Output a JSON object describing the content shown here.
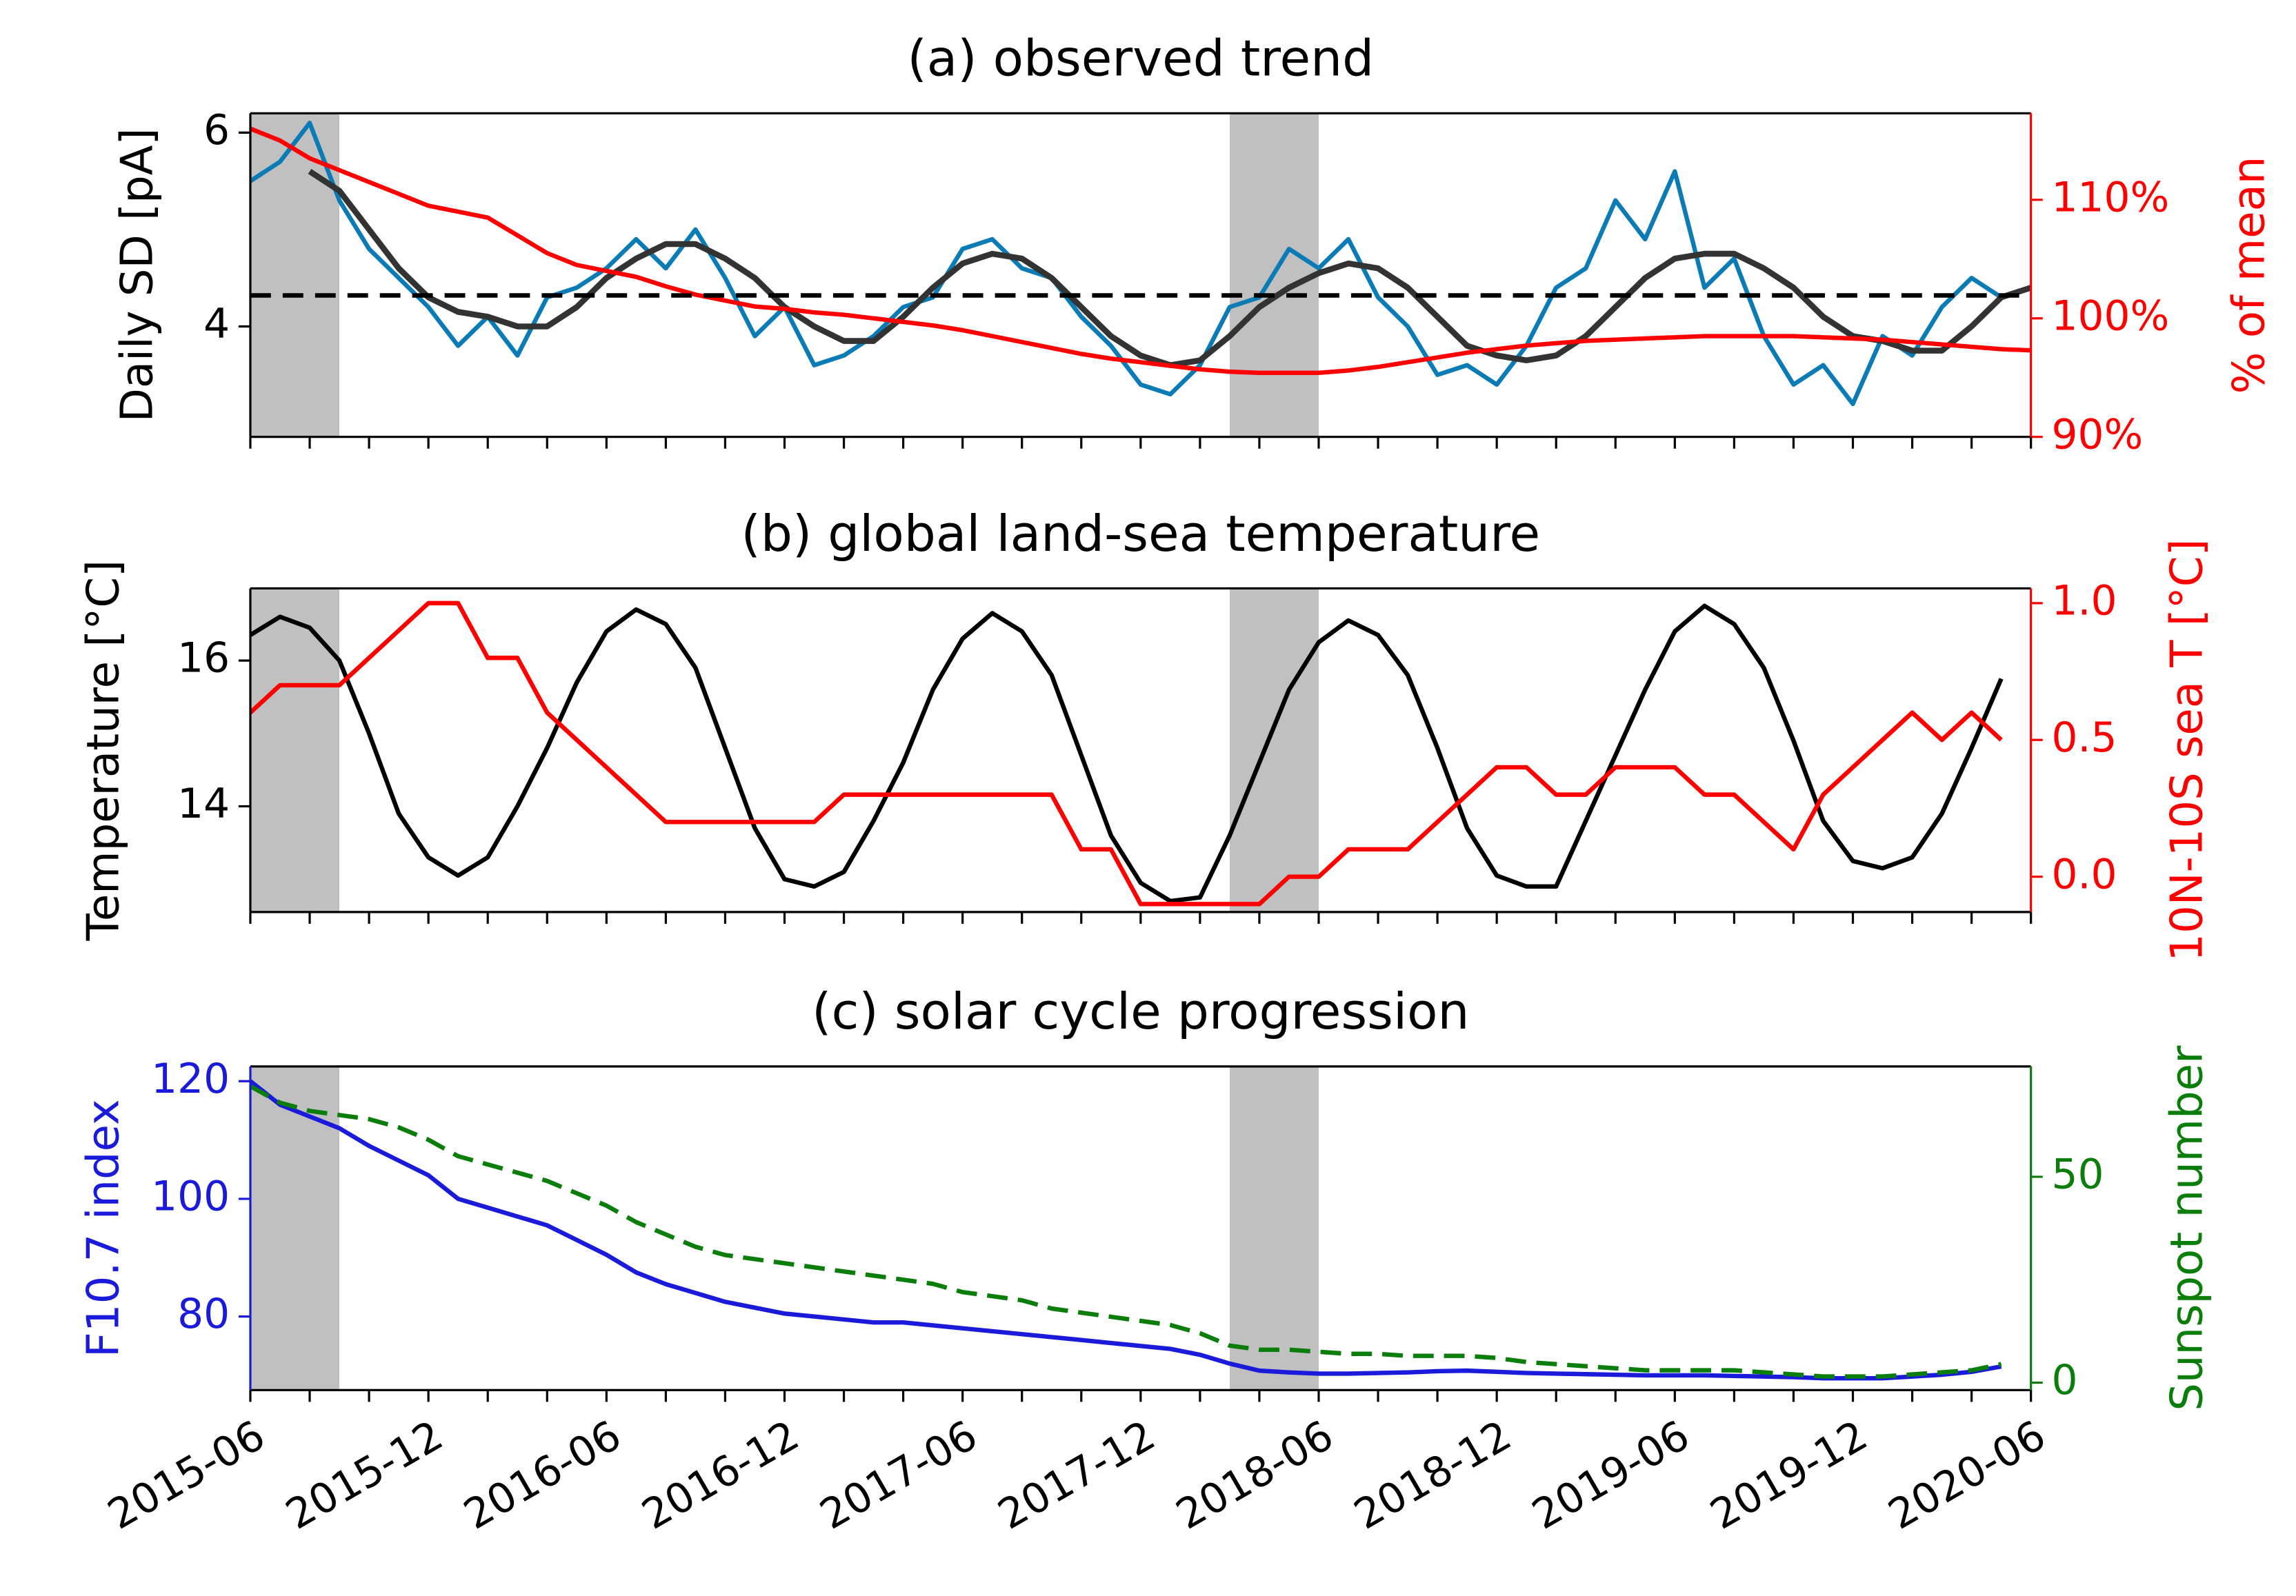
{
  "chart_data": [
    {
      "type": "line",
      "title": "(a) observed trend",
      "ylabel": "Daily SD [pA]",
      "y2label": "% of mean",
      "ylabel_color": "#000000",
      "y2label_color": "#ff0000",
      "x": [
        "2015-06",
        "2015-07",
        "2015-08",
        "2015-09",
        "2015-10",
        "2015-11",
        "2015-12",
        "2016-01",
        "2016-02",
        "2016-03",
        "2016-04",
        "2016-05",
        "2016-06",
        "2016-07",
        "2016-08",
        "2016-09",
        "2016-10",
        "2016-11",
        "2016-12",
        "2017-01",
        "2017-02",
        "2017-03",
        "2017-04",
        "2017-05",
        "2017-06",
        "2017-07",
        "2017-08",
        "2017-09",
        "2017-10",
        "2017-11",
        "2017-12",
        "2018-01",
        "2018-02",
        "2018-03",
        "2018-04",
        "2018-05",
        "2018-06",
        "2018-07",
        "2018-08",
        "2018-09",
        "2018-10",
        "2018-11",
        "2018-12",
        "2019-01",
        "2019-02",
        "2019-03",
        "2019-04",
        "2019-05",
        "2019-06",
        "2019-07",
        "2019-08",
        "2019-09",
        "2019-10",
        "2019-11",
        "2019-12",
        "2020-01",
        "2020-02",
        "2020-03",
        "2020-04",
        "2020-05",
        "2020-06"
      ],
      "series": [
        {
          "color": "#0a7bb5",
          "width": 3,
          "values": [
            5.5,
            5.7,
            6.1,
            5.3,
            4.8,
            4.5,
            4.2,
            3.8,
            4.1,
            3.7,
            4.3,
            4.4,
            4.6,
            4.9,
            4.6,
            5.0,
            4.5,
            3.9,
            4.2,
            3.6,
            3.7,
            3.9,
            4.2,
            4.3,
            4.8,
            4.9,
            4.6,
            4.5,
            4.1,
            3.8,
            3.4,
            3.3,
            3.6,
            4.2,
            4.3,
            4.8,
            4.6,
            4.9,
            4.3,
            4.0,
            3.5,
            3.6,
            3.4,
            3.8,
            4.4,
            4.6,
            5.3,
            4.9,
            5.6,
            4.4,
            4.7,
            3.9,
            3.4,
            3.6,
            3.2,
            3.9,
            3.7,
            4.2,
            4.5,
            4.3,
            4.4
          ]
        },
        {
          "color": "#333333",
          "width": 4,
          "values": [
            null,
            null,
            5.6,
            5.4,
            5.0,
            4.6,
            4.3,
            4.15,
            4.1,
            4.0,
            4.0,
            4.2,
            4.5,
            4.7,
            4.85,
            4.85,
            4.7,
            4.5,
            4.2,
            4.0,
            3.85,
            3.85,
            4.1,
            4.4,
            4.65,
            4.75,
            4.7,
            4.5,
            4.2,
            3.9,
            3.7,
            3.6,
            3.65,
            3.9,
            4.2,
            4.4,
            4.55,
            4.65,
            4.6,
            4.4,
            4.1,
            3.8,
            3.7,
            3.65,
            3.7,
            3.9,
            4.2,
            4.5,
            4.7,
            4.75,
            4.75,
            4.6,
            4.4,
            4.1,
            3.9,
            3.85,
            3.75,
            3.75,
            4.0,
            4.3,
            4.4
          ]
        },
        {
          "color": "#ff0000",
          "width": 3,
          "axis": "y2",
          "values": [
            116,
            115,
            113.5,
            112.5,
            111.5,
            110.5,
            109.5,
            109,
            108.5,
            107,
            105.5,
            104.5,
            104,
            103.5,
            102.7,
            102,
            101.5,
            101,
            100.8,
            100.5,
            100.3,
            100,
            99.7,
            99.4,
            99,
            98.5,
            98,
            97.5,
            97,
            96.6,
            96.3,
            96,
            95.7,
            95.5,
            95.4,
            95.4,
            95.4,
            95.6,
            95.9,
            96.3,
            96.7,
            97.1,
            97.4,
            97.7,
            97.9,
            98.1,
            98.2,
            98.3,
            98.4,
            98.5,
            98.5,
            98.5,
            98.5,
            98.4,
            98.3,
            98.2,
            98,
            97.8,
            97.6,
            97.4,
            97.3
          ]
        }
      ],
      "reference_line": 4.32,
      "shaded": [
        [
          "2015-06",
          "2015-09"
        ],
        [
          "2018-03",
          "2018-06"
        ]
      ],
      "xlim": [
        "2015-06",
        "2020-06"
      ],
      "xticks": [
        "2015-06",
        "2015-12",
        "2016-06",
        "2016-12",
        "2017-06",
        "2017-12",
        "2018-06",
        "2018-12",
        "2019-06",
        "2019-12",
        "2020-06"
      ],
      "xminor_ticks": [
        "2015-08",
        "2015-10",
        "2016-02",
        "2016-04",
        "2016-08",
        "2016-10",
        "2017-02",
        "2017-04",
        "2017-08",
        "2017-10",
        "2018-02",
        "2018-04",
        "2018-08",
        "2018-10",
        "2019-02",
        "2019-04",
        "2019-08",
        "2019-10",
        "2020-02",
        "2020-04"
      ],
      "show_xtick_labels": false,
      "ylim": [
        2.86,
        6.2
      ],
      "yticks": [
        4,
        6
      ],
      "y2lim": [
        90,
        117.3
      ],
      "y2ticks": [
        {
          "value": 90,
          "label": "90%"
        },
        {
          "value": 100,
          "label": "100%"
        },
        {
          "value": 110,
          "label": "110%"
        }
      ]
    },
    {
      "type": "line",
      "title": "(b) global land-sea temperature",
      "ylabel": "Temperature [°C]",
      "y2label": "10N-10S sea T [°C]",
      "ylabel_color": "#000000",
      "y2label_color": "#ff0000",
      "x": [
        "2015-06",
        "2015-07",
        "2015-08",
        "2015-09",
        "2015-10",
        "2015-11",
        "2015-12",
        "2016-01",
        "2016-02",
        "2016-03",
        "2016-04",
        "2016-05",
        "2016-06",
        "2016-07",
        "2016-08",
        "2016-09",
        "2016-10",
        "2016-11",
        "2016-12",
        "2017-01",
        "2017-02",
        "2017-03",
        "2017-04",
        "2017-05",
        "2017-06",
        "2017-07",
        "2017-08",
        "2017-09",
        "2017-10",
        "2017-11",
        "2017-12",
        "2018-01",
        "2018-02",
        "2018-03",
        "2018-04",
        "2018-05",
        "2018-06",
        "2018-07",
        "2018-08",
        "2018-09",
        "2018-10",
        "2018-11",
        "2018-12",
        "2019-01",
        "2019-02",
        "2019-03",
        "2019-04",
        "2019-05",
        "2019-06",
        "2019-07",
        "2019-08",
        "2019-09",
        "2019-10",
        "2019-11",
        "2019-12",
        "2020-01",
        "2020-02",
        "2020-03",
        "2020-04",
        "2020-05"
      ],
      "series": [
        {
          "color": "#000000",
          "width": 3,
          "values": [
            16.35,
            16.6,
            16.45,
            16.0,
            15.0,
            13.9,
            13.3,
            13.05,
            13.3,
            14.0,
            14.8,
            15.7,
            16.4,
            16.7,
            16.5,
            15.9,
            14.8,
            13.7,
            13.0,
            12.9,
            13.1,
            13.8,
            14.6,
            15.6,
            16.3,
            16.65,
            16.4,
            15.8,
            14.7,
            13.6,
            12.95,
            12.7,
            12.75,
            13.6,
            14.6,
            15.6,
            16.25,
            16.55,
            16.35,
            15.8,
            14.8,
            13.7,
            13.05,
            12.9,
            12.9,
            13.8,
            14.7,
            15.6,
            16.4,
            16.75,
            16.5,
            15.9,
            14.9,
            13.8,
            13.25,
            13.15,
            13.3,
            13.9,
            14.8,
            15.75
          ]
        },
        {
          "color": "#ff0000",
          "width": 3,
          "axis": "y2",
          "values": [
            0.6,
            0.7,
            0.7,
            0.7,
            0.8,
            0.9,
            1.0,
            1.0,
            0.8,
            0.8,
            0.6,
            0.5,
            0.4,
            0.3,
            0.2,
            0.2,
            0.2,
            0.2,
            0.2,
            0.2,
            0.3,
            0.3,
            0.3,
            0.3,
            0.3,
            0.3,
            0.3,
            0.3,
            0.1,
            0.1,
            -0.1,
            -0.1,
            -0.1,
            -0.1,
            -0.1,
            0.0,
            0.0,
            0.1,
            0.1,
            0.1,
            0.2,
            0.3,
            0.4,
            0.4,
            0.3,
            0.3,
            0.4,
            0.4,
            0.4,
            0.3,
            0.3,
            0.2,
            0.1,
            0.3,
            0.4,
            0.5,
            0.6,
            0.5,
            0.6,
            0.5
          ]
        }
      ],
      "shaded": [
        [
          "2015-06",
          "2015-09"
        ],
        [
          "2018-03",
          "2018-06"
        ]
      ],
      "xlim": [
        "2015-06",
        "2020-06"
      ],
      "xticks": [
        "2015-06",
        "2015-12",
        "2016-06",
        "2016-12",
        "2017-06",
        "2017-12",
        "2018-06",
        "2018-12",
        "2019-06",
        "2019-12",
        "2020-06"
      ],
      "xminor_ticks": [
        "2015-08",
        "2015-10",
        "2016-02",
        "2016-04",
        "2016-08",
        "2016-10",
        "2017-02",
        "2017-04",
        "2017-08",
        "2017-10",
        "2018-02",
        "2018-04",
        "2018-08",
        "2018-10",
        "2019-02",
        "2019-04",
        "2019-08",
        "2019-10",
        "2020-02",
        "2020-04"
      ],
      "show_xtick_labels": false,
      "ylim": [
        12.55,
        16.99
      ],
      "yticks": [
        14,
        16
      ],
      "y2lim": [
        -0.129,
        1.054
      ],
      "y2ticks": [
        {
          "value": 0,
          "label": "0.0"
        },
        0.5,
        {
          "value": 1,
          "label": "1.0"
        }
      ]
    },
    {
      "type": "line",
      "title": "(c) solar cycle progression",
      "ylabel": "F10.7 index",
      "y2label": "Sunspot number",
      "ylabel_color": "#1a1adb",
      "y2label_color": "#0a7d0a",
      "x": [
        "2015-06",
        "2015-07",
        "2015-08",
        "2015-09",
        "2015-10",
        "2015-11",
        "2015-12",
        "2016-01",
        "2016-02",
        "2016-03",
        "2016-04",
        "2016-05",
        "2016-06",
        "2016-07",
        "2016-08",
        "2016-09",
        "2016-10",
        "2016-11",
        "2016-12",
        "2017-01",
        "2017-02",
        "2017-03",
        "2017-04",
        "2017-05",
        "2017-06",
        "2017-07",
        "2017-08",
        "2017-09",
        "2017-10",
        "2017-11",
        "2017-12",
        "2018-01",
        "2018-02",
        "2018-03",
        "2018-04",
        "2018-05",
        "2018-06",
        "2018-07",
        "2018-08",
        "2018-09",
        "2018-10",
        "2018-11",
        "2018-12",
        "2019-01",
        "2019-02",
        "2019-03",
        "2019-04",
        "2019-05",
        "2019-06",
        "2019-07",
        "2019-08",
        "2019-09",
        "2019-10",
        "2019-11",
        "2019-12",
        "2020-01",
        "2020-02",
        "2020-03",
        "2020-04",
        "2020-05"
      ],
      "series": [
        {
          "color": "#1a1adb",
          "width": 3,
          "values": [
            120,
            116,
            114,
            112,
            109,
            106.5,
            104,
            100,
            98.5,
            97,
            95.5,
            93,
            90.5,
            87.5,
            85.5,
            84,
            82.5,
            81.5,
            80.5,
            80,
            79.5,
            79,
            79,
            78.5,
            78,
            77.5,
            77,
            76.5,
            76,
            75.5,
            75,
            74.5,
            73.5,
            72,
            70.8,
            70.5,
            70.3,
            70.3,
            70.4,
            70.5,
            70.7,
            70.8,
            70.6,
            70.4,
            70.3,
            70.2,
            70.1,
            70,
            70,
            70,
            69.9,
            69.8,
            69.7,
            69.5,
            69.5,
            69.5,
            69.8,
            70.1,
            70.6,
            71.5
          ]
        },
        {
          "color": "#0a7d0a",
          "width": 3,
          "dash": true,
          "axis": "y2",
          "values": [
            72,
            68,
            66,
            65,
            64,
            62,
            59,
            55,
            53,
            51,
            49,
            46,
            43,
            39,
            36,
            33,
            31,
            30,
            29,
            28,
            27,
            26,
            25,
            24,
            22,
            21,
            20,
            18,
            17,
            16,
            15,
            14,
            12,
            9,
            8,
            8,
            7.5,
            7,
            7,
            6.5,
            6.5,
            6.5,
            6,
            5,
            4.5,
            4,
            3.5,
            3,
            3,
            3,
            3,
            2.5,
            2,
            1.5,
            1.5,
            1.5,
            2,
            2.5,
            3,
            4.5
          ]
        }
      ],
      "shaded": [
        [
          "2015-06",
          "2015-09"
        ],
        [
          "2018-03",
          "2018-06"
        ]
      ],
      "xlim": [
        "2015-06",
        "2020-06"
      ],
      "xticks": [
        "2015-06",
        "2015-12",
        "2016-06",
        "2016-12",
        "2017-06",
        "2017-12",
        "2018-06",
        "2018-12",
        "2019-06",
        "2019-12",
        "2020-06"
      ],
      "xminor_ticks": [
        "2015-08",
        "2015-10",
        "2016-02",
        "2016-04",
        "2016-08",
        "2016-10",
        "2017-02",
        "2017-04",
        "2017-08",
        "2017-10",
        "2018-02",
        "2018-04",
        "2018-08",
        "2018-10",
        "2019-02",
        "2019-04",
        "2019-08",
        "2019-10",
        "2020-02",
        "2020-04"
      ],
      "show_xtick_labels": true,
      "ylim": [
        67.5,
        122.5
      ],
      "yticks": [
        80,
        100,
        120
      ],
      "y2lim": [
        -1.8,
        76.8
      ],
      "y2ticks": [
        0,
        50
      ]
    }
  ]
}
